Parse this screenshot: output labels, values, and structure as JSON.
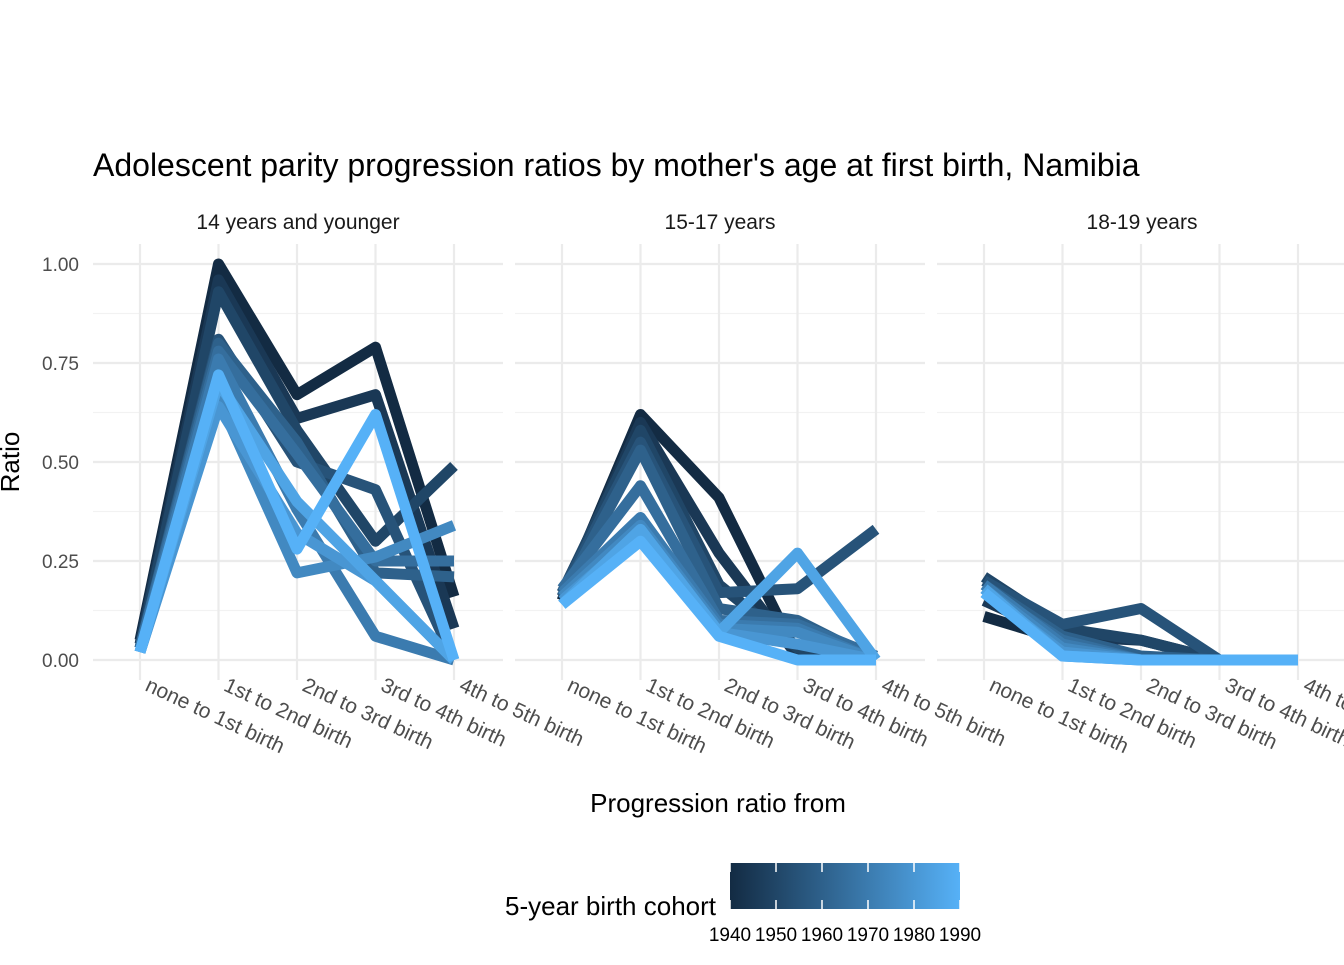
{
  "chart_data": {
    "type": "line",
    "title": "Adolescent parity progression ratios by mother's age at first birth,  Namibia",
    "xlabel": "Progression ratio from",
    "ylabel": "Ratio",
    "categories": [
      "none to 1st birth",
      "1st to 2nd birth",
      "2nd to 3rd birth",
      "3rd to 4th birth",
      "4th to 5th birth"
    ],
    "ylim": [
      0,
      1.05
    ],
    "y_ticks": [
      0,
      0.25,
      0.5,
      0.75,
      1.0
    ],
    "y_tick_labels": [
      "0.00",
      "0.25",
      "0.50",
      "0.75",
      "1.00"
    ],
    "grid": true,
    "legend": {
      "title": "5-year birth cohort",
      "type": "colorbar",
      "position": "bottom",
      "range": [
        1940,
        1990
      ],
      "ticks": [
        "1940",
        "1950",
        "1960",
        "1970",
        "1980",
        "1990"
      ],
      "color_low": "#132B43",
      "color_high": "#56B1F7"
    },
    "panels": [
      {
        "label": "14 years and younger",
        "series": [
          {
            "cohort": 1940,
            "values": [
              0.05,
              1.0,
              0.67,
              0.79,
              0.16
            ]
          },
          {
            "cohort": 1945,
            "values": [
              0.04,
              0.96,
              0.61,
              0.67,
              0.08
            ]
          },
          {
            "cohort": 1950,
            "values": [
              0.03,
              0.93,
              0.58,
              0.3,
              0.49
            ]
          },
          {
            "cohort": 1955,
            "values": [
              0.03,
              0.81,
              0.5,
              0.43,
              0.0
            ]
          },
          {
            "cohort": 1960,
            "values": [
              0.03,
              0.8,
              0.55,
              0.22,
              0.21
            ]
          },
          {
            "cohort": 1965,
            "values": [
              0.03,
              0.78,
              0.52,
              0.25,
              0.25
            ]
          },
          {
            "cohort": 1970,
            "values": [
              0.02,
              0.76,
              0.38,
              0.06,
              0.0
            ]
          },
          {
            "cohort": 1975,
            "values": [
              0.02,
              0.66,
              0.22,
              0.26,
              0.34
            ]
          },
          {
            "cohort": 1980,
            "values": [
              0.02,
              0.64,
              0.32,
              0.2,
              0.0
            ]
          },
          {
            "cohort": 1985,
            "values": [
              0.02,
              0.7,
              0.4,
              0.2,
              0.0
            ]
          },
          {
            "cohort": 1990,
            "values": [
              0.02,
              0.72,
              0.28,
              0.62,
              0.0
            ]
          }
        ]
      },
      {
        "label": "15-17 years",
        "series": [
          {
            "cohort": 1940,
            "values": [
              0.15,
              0.62,
              0.41,
              0.01,
              0.0
            ]
          },
          {
            "cohort": 1945,
            "values": [
              0.16,
              0.6,
              0.27,
              0.01,
              0.0
            ]
          },
          {
            "cohort": 1950,
            "values": [
              0.17,
              0.58,
              0.19,
              0.03,
              0.0
            ]
          },
          {
            "cohort": 1955,
            "values": [
              0.17,
              0.55,
              0.17,
              0.18,
              0.33
            ]
          },
          {
            "cohort": 1960,
            "values": [
              0.16,
              0.53,
              0.13,
              0.1,
              0.0
            ]
          },
          {
            "cohort": 1965,
            "values": [
              0.18,
              0.44,
              0.1,
              0.09,
              0.01
            ]
          },
          {
            "cohort": 1970,
            "values": [
              0.17,
              0.36,
              0.09,
              0.08,
              0.0
            ]
          },
          {
            "cohort": 1975,
            "values": [
              0.16,
              0.34,
              0.08,
              0.07,
              0.0
            ]
          },
          {
            "cohort": 1980,
            "values": [
              0.15,
              0.32,
              0.07,
              0.04,
              0.0
            ]
          },
          {
            "cohort": 1985,
            "values": [
              0.14,
              0.33,
              0.07,
              0.27,
              0.0
            ]
          },
          {
            "cohort": 1990,
            "values": [
              0.14,
              0.3,
              0.06,
              0.0,
              0.0
            ]
          }
        ]
      },
      {
        "label": "18-19 years",
        "series": [
          {
            "cohort": 1940,
            "values": [
              0.11,
              0.05,
              0.0,
              0.0,
              0.0
            ]
          },
          {
            "cohort": 1945,
            "values": [
              0.15,
              0.06,
              0.05,
              0.0,
              0.0
            ]
          },
          {
            "cohort": 1950,
            "values": [
              0.21,
              0.08,
              0.05,
              0.0,
              0.0
            ]
          },
          {
            "cohort": 1955,
            "values": [
              0.2,
              0.09,
              0.13,
              0.0,
              0.0
            ]
          },
          {
            "cohort": 1960,
            "values": [
              0.19,
              0.06,
              0.01,
              0.0,
              0.0
            ]
          },
          {
            "cohort": 1965,
            "values": [
              0.18,
              0.05,
              0.0,
              0.0,
              0.0
            ]
          },
          {
            "cohort": 1970,
            "values": [
              0.19,
              0.04,
              0.0,
              0.0,
              0.0
            ]
          },
          {
            "cohort": 1975,
            "values": [
              0.18,
              0.03,
              0.0,
              0.0,
              0.0
            ]
          },
          {
            "cohort": 1980,
            "values": [
              0.17,
              0.02,
              0.0,
              0.0,
              0.0
            ]
          },
          {
            "cohort": 1985,
            "values": [
              0.18,
              0.01,
              0.0,
              0.0,
              0.0
            ]
          },
          {
            "cohort": 1990,
            "values": [
              0.17,
              0.01,
              0.0,
              0.0,
              0.0
            ]
          }
        ]
      }
    ]
  }
}
